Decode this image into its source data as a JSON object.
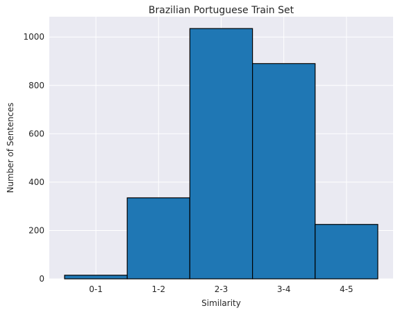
{
  "chart_data": {
    "type": "bar",
    "title": "Brazilian Portuguese Train Set",
    "xlabel": "Similarity",
    "ylabel": "Number of Sentences",
    "categories": [
      "0-1",
      "1-2",
      "2-3",
      "3-4",
      "4-5"
    ],
    "values": [
      15,
      335,
      1035,
      890,
      225
    ],
    "ylim": [
      0,
      1084
    ],
    "yticks": [
      0,
      200,
      400,
      600,
      800,
      1000
    ],
    "grid": true,
    "legend": "none",
    "colors": {
      "bar": "#1f77b4",
      "edge": "#000000",
      "plot_background": "#eaeaf2",
      "grid": "#ffffff"
    }
  }
}
